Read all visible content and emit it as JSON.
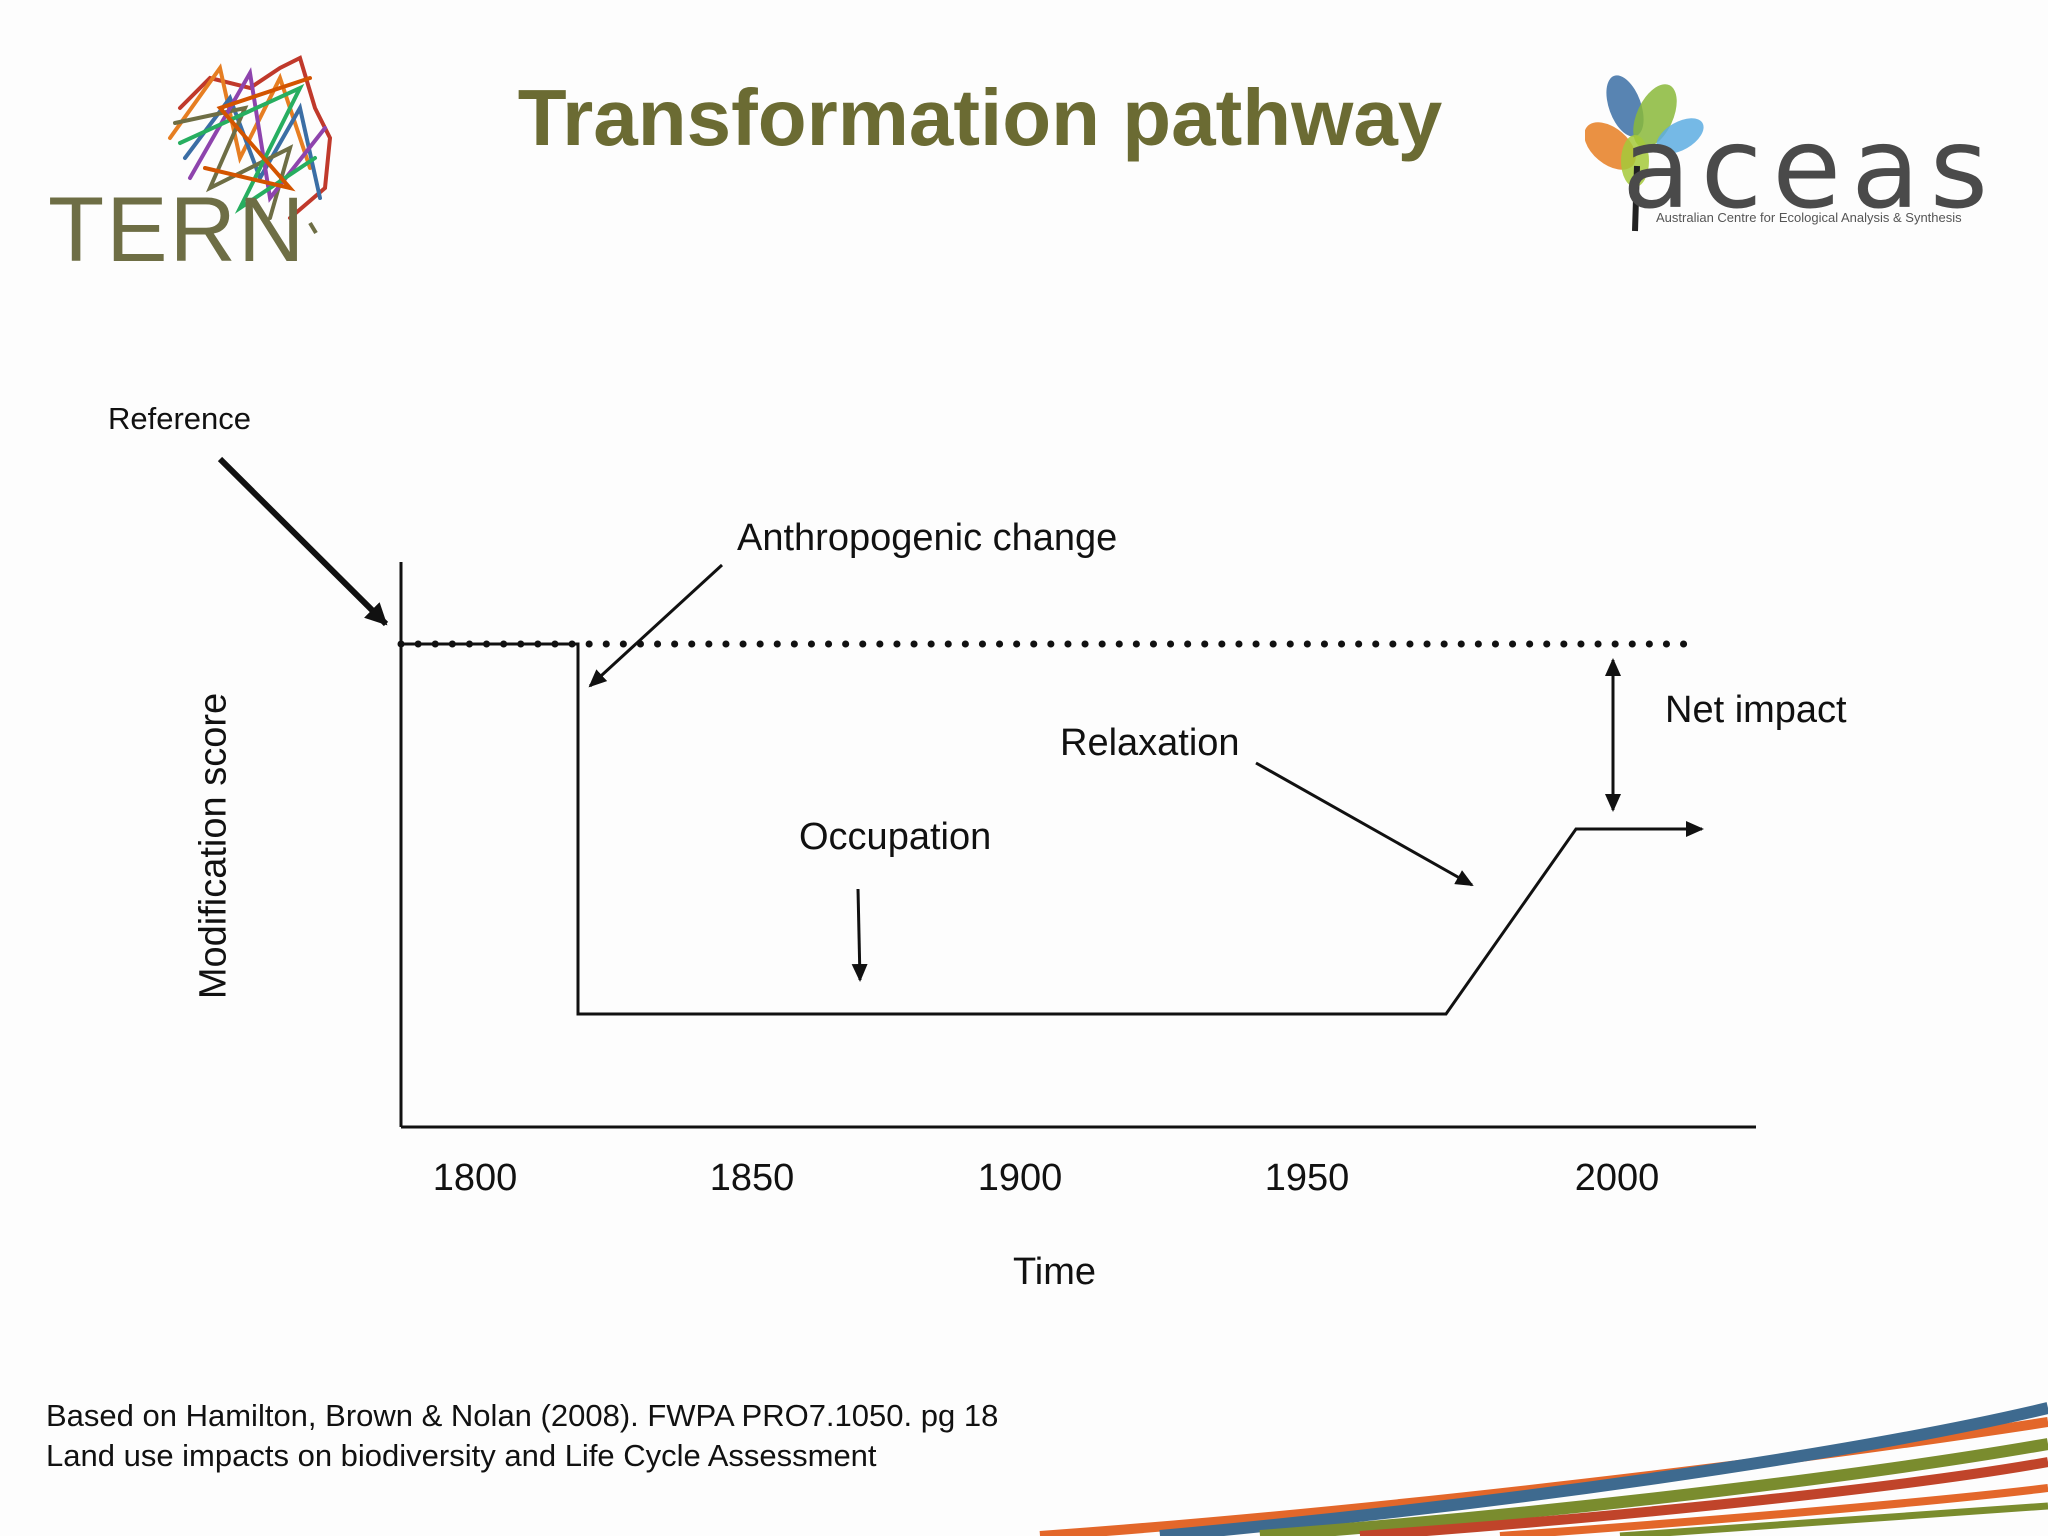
{
  "slide": {
    "title": "Transformation pathway",
    "logos": {
      "left": {
        "text": "TERN",
        "colors": [
          "#c0392b",
          "#e67e22",
          "#3b6ea5",
          "#6e6e45",
          "#8e44ad",
          "#27ae60"
        ]
      },
      "right": {
        "text": "aceas",
        "subtitle": "Australian Centre for Ecological Analysis & Synthesis"
      }
    },
    "citation": [
      "Based on Hamilton, Brown & Nolan (2008). FWPA PRO7.1050. pg 18",
      "Land use impacts on biodiversity and Life Cycle Assessment"
    ]
  },
  "diagram": {
    "xlabel": "Time",
    "ylabel": "Modification score",
    "x_ticks": [
      "1800",
      "1850",
      "1900",
      "1950",
      "2000"
    ],
    "annotations": {
      "reference": "Reference",
      "anthropogenic_change": "Anthropogenic change",
      "relaxation": "Relaxation",
      "occupation": "Occupation",
      "net_impact": "Net impact"
    }
  },
  "stripe_colors": [
    "#e3672a",
    "#3e6a8f",
    "#7a8c2e",
    "#c0442a"
  ]
}
